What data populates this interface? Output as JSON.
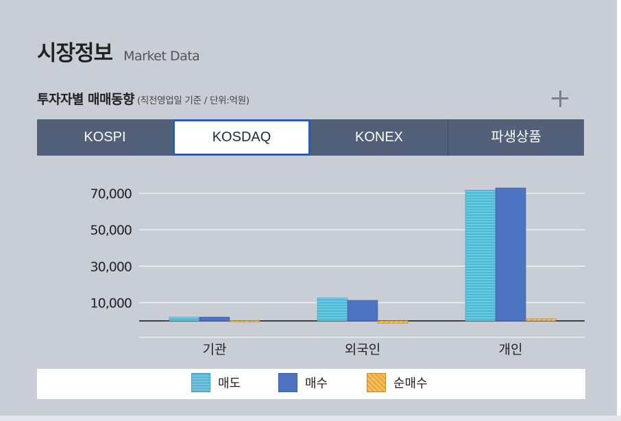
{
  "header": {
    "title": "시장정보",
    "subtitle": "Market Data"
  },
  "section": {
    "title": "투자자별 매매동향",
    "note": "(직전영업일 기준 / 단위:억원)"
  },
  "tabs": [
    {
      "label": "KOSPI",
      "active": false
    },
    {
      "label": "KOSDAQ",
      "active": true
    },
    {
      "label": "KONEX",
      "active": false
    },
    {
      "label": "파생상품",
      "active": false
    }
  ],
  "colors": {
    "sell": "#56b9d6",
    "buy": "#4c74c0",
    "net": "#eaa838",
    "tab_bg": "#52607a",
    "active_border": "#2e5ca8"
  },
  "icons": {
    "expand": "plus-icon"
  },
  "chart_data": {
    "type": "bar",
    "categories": [
      "기관",
      "외국인",
      "개인"
    ],
    "series": [
      {
        "name": "매도",
        "values": [
          2000,
          12600,
          71800
        ]
      },
      {
        "name": "매수",
        "values": [
          2100,
          11300,
          73000
        ]
      },
      {
        "name": "순매수",
        "values": [
          100,
          -1300,
          1200
        ]
      }
    ],
    "yticks": [
      "70,000",
      "50,000",
      "30,000",
      "10,000"
    ],
    "ytick_values": [
      70000,
      50000,
      30000,
      10000
    ],
    "ylim": [
      -10000,
      75000
    ],
    "grid": true,
    "legend": "bottom"
  }
}
